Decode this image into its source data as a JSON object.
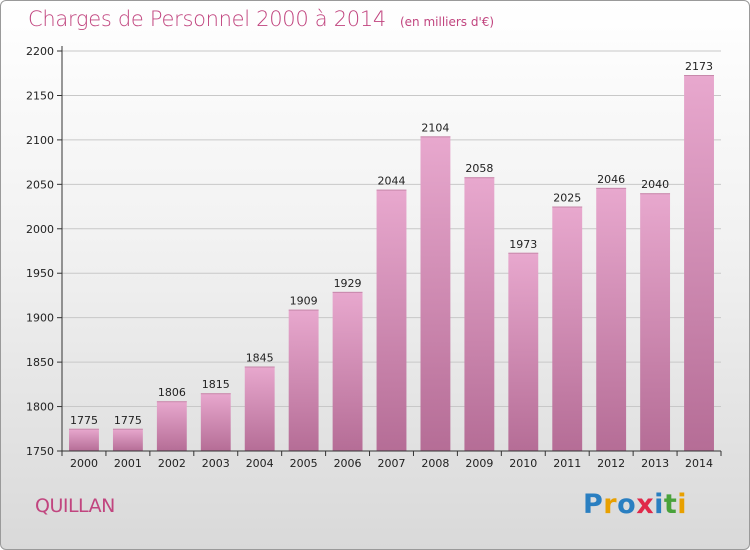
{
  "header": {
    "title": "Charges de Personnel 2000 à 2014",
    "subtitle": "(en milliers d'€)"
  },
  "footer": {
    "commune": "QUILLAN",
    "logo_letters": [
      "P",
      "r",
      "o",
      "x",
      "i",
      "t",
      "i"
    ]
  },
  "colors": {
    "accent": "#c1457f",
    "bar_top": "#e8a8ce",
    "bar_bottom": "#b56d96",
    "logo": [
      "#2a7fc1",
      "#e8a000",
      "#2a7fc1",
      "#e0294a",
      "#2a7fc1",
      "#49a23b",
      "#e8a000"
    ]
  },
  "chart_data": {
    "type": "bar",
    "title": "Charges de Personnel 2000 à 2014",
    "subtitle": "(en milliers d'€)",
    "categories": [
      "2000",
      "2001",
      "2002",
      "2003",
      "2004",
      "2005",
      "2006",
      "2007",
      "2008",
      "2009",
      "2010",
      "2011",
      "2012",
      "2013",
      "2014"
    ],
    "values": [
      1775,
      1775,
      1806,
      1815,
      1845,
      1909,
      1929,
      2044,
      2104,
      2058,
      1973,
      2025,
      2046,
      2040,
      2173
    ],
    "ylim": [
      1750,
      2200
    ],
    "yticks": [
      1750,
      1800,
      1850,
      1900,
      1950,
      2000,
      2050,
      2100,
      2150,
      2200
    ],
    "grid": true
  }
}
